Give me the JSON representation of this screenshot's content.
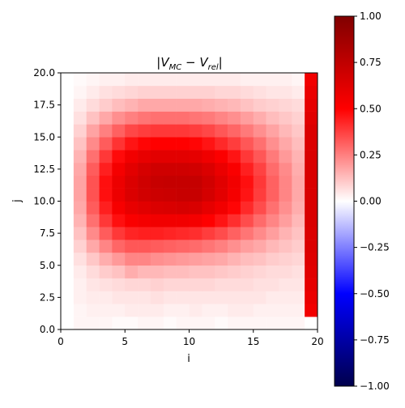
{
  "chart_data": {
    "type": "heatmap",
    "title_main": "|V",
    "title_sub1": "MC",
    "title_minus": " − V",
    "title_sub2": "rel",
    "title_end": "|",
    "xlabel": "i",
    "ylabel": "j",
    "xlim": [
      0,
      20
    ],
    "ylim": [
      0,
      20
    ],
    "xticks": [
      "0",
      "5",
      "10",
      "15",
      "20"
    ],
    "yticks": [
      "0.0",
      "2.5",
      "5.0",
      "7.5",
      "10.0",
      "12.5",
      "15.0",
      "17.5",
      "20.0"
    ],
    "colorbar": {
      "min": -1.0,
      "max": 1.0,
      "colormap": "seismic",
      "ticks": [
        "1.00",
        "0.75",
        "0.50",
        "0.25",
        "0.00",
        "−0.25",
        "−0.50",
        "−0.75",
        "−1.00"
      ]
    },
    "grid": false,
    "colors": {
      "dark_blue": "#00004c",
      "blue": "#0000ff",
      "white": "#ffffff",
      "red": "#ff0000",
      "dark_red": "#800000"
    },
    "z_description_rows_j0_to_j19": [
      [
        0.0,
        0.02,
        0.02,
        0.02,
        0.01,
        0.01,
        0.02,
        0.02,
        0.01,
        0.02,
        0.02,
        0.02,
        0.01,
        0.02,
        0.02,
        0.02,
        0.02,
        0.02,
        0.02,
        0.0
      ],
      [
        0.0,
        0.02,
        0.03,
        0.03,
        0.03,
        0.04,
        0.04,
        0.04,
        0.03,
        0.03,
        0.04,
        0.03,
        0.03,
        0.04,
        0.04,
        0.03,
        0.03,
        0.03,
        0.03,
        0.55
      ],
      [
        0.0,
        0.03,
        0.04,
        0.04,
        0.05,
        0.05,
        0.05,
        0.06,
        0.05,
        0.05,
        0.05,
        0.05,
        0.05,
        0.05,
        0.05,
        0.05,
        0.04,
        0.04,
        0.04,
        0.58
      ],
      [
        0.0,
        0.03,
        0.05,
        0.06,
        0.07,
        0.08,
        0.08,
        0.09,
        0.08,
        0.08,
        0.08,
        0.08,
        0.07,
        0.07,
        0.07,
        0.06,
        0.06,
        0.05,
        0.05,
        0.6
      ],
      [
        0.0,
        0.04,
        0.07,
        0.1,
        0.12,
        0.16,
        0.14,
        0.14,
        0.13,
        0.13,
        0.12,
        0.12,
        0.11,
        0.1,
        0.09,
        0.08,
        0.07,
        0.07,
        0.06,
        0.62
      ],
      [
        0.0,
        0.06,
        0.11,
        0.16,
        0.2,
        0.24,
        0.24,
        0.22,
        0.21,
        0.2,
        0.19,
        0.18,
        0.17,
        0.15,
        0.13,
        0.12,
        0.1,
        0.09,
        0.08,
        0.63
      ],
      [
        0.0,
        0.09,
        0.17,
        0.24,
        0.3,
        0.33,
        0.33,
        0.32,
        0.31,
        0.3,
        0.29,
        0.27,
        0.25,
        0.22,
        0.19,
        0.17,
        0.14,
        0.12,
        0.1,
        0.64
      ],
      [
        0.0,
        0.12,
        0.23,
        0.32,
        0.39,
        0.43,
        0.44,
        0.44,
        0.43,
        0.42,
        0.41,
        0.38,
        0.35,
        0.31,
        0.27,
        0.23,
        0.19,
        0.15,
        0.12,
        0.64
      ],
      [
        0.0,
        0.15,
        0.28,
        0.39,
        0.47,
        0.52,
        0.54,
        0.55,
        0.55,
        0.55,
        0.54,
        0.5,
        0.46,
        0.41,
        0.35,
        0.29,
        0.24,
        0.19,
        0.14,
        0.65
      ],
      [
        0.0,
        0.17,
        0.32,
        0.44,
        0.53,
        0.59,
        0.62,
        0.64,
        0.65,
        0.66,
        0.65,
        0.6,
        0.55,
        0.49,
        0.42,
        0.35,
        0.28,
        0.22,
        0.16,
        0.65
      ],
      [
        0.0,
        0.18,
        0.34,
        0.47,
        0.57,
        0.64,
        0.68,
        0.7,
        0.71,
        0.72,
        0.72,
        0.67,
        0.61,
        0.54,
        0.46,
        0.38,
        0.31,
        0.24,
        0.17,
        0.65
      ],
      [
        0.0,
        0.18,
        0.34,
        0.47,
        0.57,
        0.64,
        0.69,
        0.72,
        0.73,
        0.73,
        0.73,
        0.68,
        0.62,
        0.55,
        0.47,
        0.39,
        0.31,
        0.24,
        0.17,
        0.65
      ],
      [
        0.0,
        0.17,
        0.32,
        0.44,
        0.54,
        0.61,
        0.66,
        0.69,
        0.69,
        0.69,
        0.68,
        0.64,
        0.58,
        0.52,
        0.44,
        0.37,
        0.29,
        0.23,
        0.16,
        0.65
      ],
      [
        0.0,
        0.15,
        0.28,
        0.39,
        0.48,
        0.55,
        0.59,
        0.61,
        0.61,
        0.61,
        0.6,
        0.56,
        0.51,
        0.46,
        0.39,
        0.33,
        0.26,
        0.2,
        0.15,
        0.65
      ],
      [
        0.0,
        0.12,
        0.23,
        0.32,
        0.4,
        0.46,
        0.49,
        0.5,
        0.5,
        0.5,
        0.49,
        0.46,
        0.42,
        0.38,
        0.33,
        0.28,
        0.22,
        0.17,
        0.13,
        0.64
      ],
      [
        0.0,
        0.09,
        0.18,
        0.25,
        0.31,
        0.36,
        0.38,
        0.39,
        0.39,
        0.39,
        0.38,
        0.36,
        0.33,
        0.3,
        0.26,
        0.22,
        0.18,
        0.14,
        0.11,
        0.64
      ],
      [
        0.0,
        0.06,
        0.12,
        0.17,
        0.22,
        0.25,
        0.27,
        0.28,
        0.28,
        0.28,
        0.27,
        0.26,
        0.24,
        0.22,
        0.19,
        0.16,
        0.13,
        0.11,
        0.09,
        0.62
      ],
      [
        0.0,
        0.04,
        0.07,
        0.1,
        0.13,
        0.15,
        0.17,
        0.17,
        0.17,
        0.17,
        0.17,
        0.16,
        0.15,
        0.14,
        0.12,
        0.1,
        0.09,
        0.08,
        0.07,
        0.6
      ],
      [
        0.0,
        0.02,
        0.04,
        0.06,
        0.07,
        0.08,
        0.09,
        0.09,
        0.09,
        0.09,
        0.09,
        0.09,
        0.08,
        0.08,
        0.07,
        0.06,
        0.05,
        0.05,
        0.04,
        0.58
      ],
      [
        0.0,
        0.01,
        0.02,
        0.03,
        0.03,
        0.04,
        0.04,
        0.04,
        0.04,
        0.04,
        0.04,
        0.04,
        0.04,
        0.04,
        0.03,
        0.03,
        0.03,
        0.03,
        0.02,
        0.55
      ]
    ]
  }
}
